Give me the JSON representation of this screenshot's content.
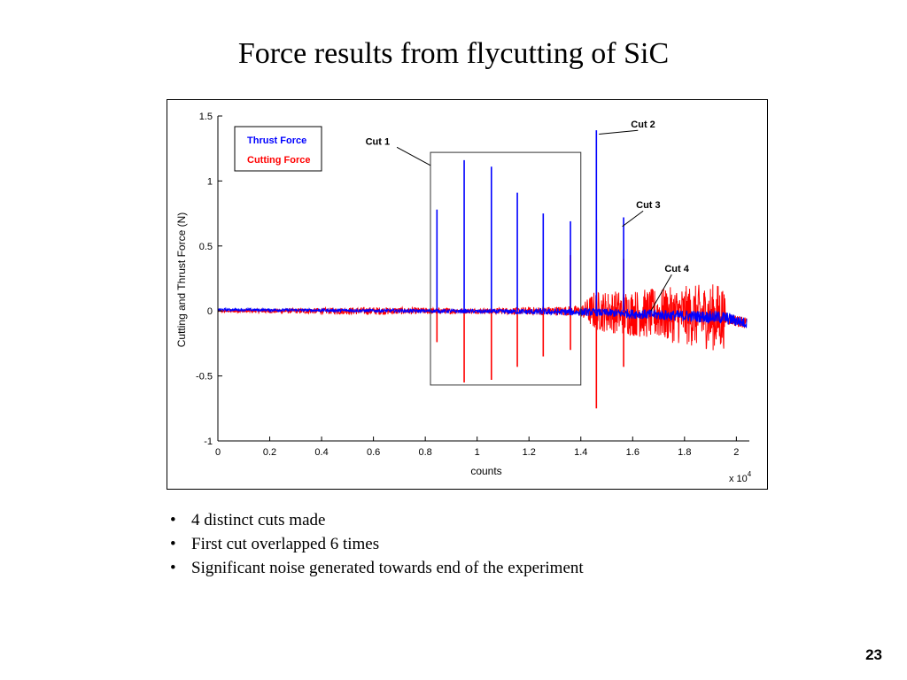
{
  "slide": {
    "title": "Force results from flycutting of SiC",
    "bullets": [
      "4 distinct cuts made",
      "First cut overlapped 6 times",
      "Significant noise generated towards end of the experiment"
    ],
    "page_number": "23"
  },
  "chart_data": {
    "type": "line",
    "title": "",
    "xlabel": "counts",
    "ylabel": "Cutting and Thrust Force (N)",
    "x_multiplier": "x 10",
    "x_multiplier_exponent": "4",
    "xlim": [
      0,
      2.05
    ],
    "ylim": [
      -1,
      1.5
    ],
    "x_ticks": [
      "0",
      "0.2",
      "0.4",
      "0.6",
      "0.8",
      "1",
      "1.2",
      "1.4",
      "1.6",
      "1.8",
      "2"
    ],
    "y_ticks": [
      "-1",
      "-0.5",
      "0",
      "0.5",
      "1",
      "1.5"
    ],
    "grid": false,
    "legend_position": "top-left",
    "series": [
      {
        "name": "Thrust Force",
        "color": "#0000ff",
        "baseline": [
          [
            0,
            0.01
          ],
          [
            0.8,
            0.0
          ],
          [
            1.45,
            -0.01
          ],
          [
            1.95,
            -0.05
          ],
          [
            2.05,
            -0.1
          ]
        ],
        "noise_band": [
          [
            0,
            0.01
          ],
          [
            1.0,
            0.015
          ],
          [
            1.45,
            0.03
          ],
          [
            1.95,
            0.05
          ],
          [
            2.05,
            0.04
          ]
        ],
        "spikes": [
          {
            "x": 0.845,
            "high": 0.78,
            "low": 0.0
          },
          {
            "x": 0.95,
            "high": 1.16,
            "low": 0.0
          },
          {
            "x": 1.055,
            "high": 1.11,
            "low": 0.0
          },
          {
            "x": 1.155,
            "high": 0.91,
            "low": 0.0
          },
          {
            "x": 1.255,
            "high": 0.75,
            "low": 0.0
          },
          {
            "x": 1.36,
            "high": 0.69,
            "low": 0.0
          },
          {
            "x": 1.46,
            "high": 1.39,
            "low": 0.0
          },
          {
            "x": 1.565,
            "high": 0.72,
            "low": 0.0
          }
        ]
      },
      {
        "name": "Cutting Force",
        "color": "#ff0000",
        "baseline": [
          [
            0,
            0.0
          ],
          [
            0.8,
            0.0
          ],
          [
            1.45,
            0.0
          ],
          [
            1.95,
            -0.05
          ],
          [
            2.05,
            -0.1
          ]
        ],
        "noise_band": [
          [
            0,
            0.01
          ],
          [
            0.6,
            0.03
          ],
          [
            1.0,
            0.02
          ],
          [
            1.4,
            0.04
          ],
          [
            1.45,
            0.15
          ],
          [
            1.7,
            0.2
          ],
          [
            1.95,
            0.27
          ],
          [
            1.96,
            0.05
          ],
          [
            2.05,
            0.04
          ]
        ],
        "spikes": [
          {
            "x": 0.845,
            "high": 0.0,
            "low": -0.24
          },
          {
            "x": 0.95,
            "high": 0.0,
            "low": -0.55
          },
          {
            "x": 1.055,
            "high": 0.0,
            "low": -0.53
          },
          {
            "x": 1.155,
            "high": 0.0,
            "low": -0.43
          },
          {
            "x": 1.255,
            "high": 0.0,
            "low": -0.35
          },
          {
            "x": 1.36,
            "high": 0.43,
            "low": -0.3
          },
          {
            "x": 1.46,
            "high": 0.7,
            "low": -0.75
          },
          {
            "x": 1.565,
            "high": 0.4,
            "low": -0.43
          }
        ]
      }
    ],
    "annotations": [
      {
        "label": "Cut 1",
        "text_x": 0.67,
        "text_y": 1.28,
        "arrow_x": 0.82,
        "arrow_y": 1.12
      },
      {
        "label": "Cut 2",
        "text_x": 1.6,
        "text_y": 1.41,
        "arrow_x": 1.47,
        "arrow_y": 1.36
      },
      {
        "label": "Cut 3",
        "text_x": 1.62,
        "text_y": 0.79,
        "arrow_x": 1.56,
        "arrow_y": 0.65
      },
      {
        "label": "Cut 4",
        "text_x": 1.73,
        "text_y": 0.3,
        "arrow_x": 1.67,
        "arrow_y": 0.0
      }
    ],
    "highlight_box": {
      "x0": 0.82,
      "x1": 1.4,
      "y0": -0.57,
      "y1": 1.22
    }
  }
}
